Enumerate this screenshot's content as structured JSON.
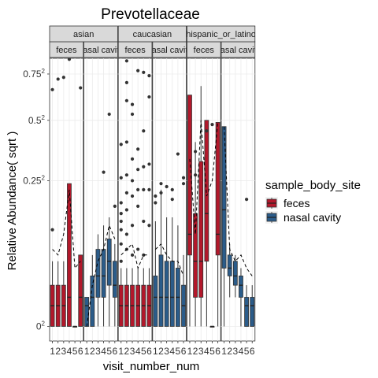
{
  "chart_data": {
    "type": "boxplot",
    "title": "Prevotellaceae",
    "xlabel": "visit_number_num",
    "ylabel": "Relative Abundance( sqrt )",
    "x_categories": [
      "1",
      "2",
      "3",
      "4",
      "5",
      "6"
    ],
    "y_scale": "sqrt",
    "y_ticks": [
      {
        "value": 0,
        "base": "0",
        "exp": "2"
      },
      {
        "value": 0.25,
        "base": "0.25",
        "exp": "2"
      },
      {
        "value": 0.5,
        "base": "0.5",
        "exp": "2"
      },
      {
        "value": 0.75,
        "base": "0.75",
        "exp": "2"
      }
    ],
    "y_range_sqrt": [
      -0.05,
      0.92
    ],
    "grid": true,
    "legend": {
      "title": "sample_body_site",
      "placement": "right",
      "entries": [
        {
          "label": "feces",
          "color": "#B2182B"
        },
        {
          "label": "nasal cavity",
          "color": "#2B5C8A"
        }
      ]
    },
    "facet_rows": [
      "asian",
      "caucasian",
      "hispanic_or_latino"
    ],
    "facets": [
      {
        "ethnicity": "asian",
        "site": "feces",
        "color": "#B2182B",
        "boxes": [
          {
            "x": 1,
            "q1": 0.0,
            "med": 0.005,
            "q3": 0.02,
            "lo": 0.0,
            "hi": 0.05
          },
          {
            "x": 2,
            "q1": 0.0,
            "med": 0.005,
            "q3": 0.02,
            "lo": 0.0,
            "hi": 0.05
          },
          {
            "x": 3,
            "q1": 0.0,
            "med": 0.005,
            "q3": 0.02,
            "lo": 0.0,
            "hi": 0.05
          },
          {
            "x": 4,
            "q1": 0.0,
            "med": 0.01,
            "q3": 0.24,
            "lo": 0.0,
            "hi": 0.24
          },
          {
            "x": 5,
            "q1": 0.0,
            "med": 0.0,
            "q3": 0.0,
            "lo": 0.0,
            "hi": 0.0
          },
          {
            "x": 6,
            "q1": 0.0,
            "med": 0.01,
            "q3": 0.06,
            "lo": 0.0,
            "hi": 0.06
          }
        ],
        "outliers": [
          {
            "x": 1,
            "y": 0.66
          },
          {
            "x": 1,
            "y": 0.11
          },
          {
            "x": 2,
            "y": 0.72
          },
          {
            "x": 3,
            "y": 0.73
          },
          {
            "x": 4,
            "y": 0.84
          },
          {
            "x": 4,
            "y": 0.88
          },
          {
            "x": 6,
            "y": 0.67
          }
        ],
        "mean_line": [
          0.07,
          0.06,
          0.1,
          0.22,
          0.04,
          0.05
        ]
      },
      {
        "ethnicity": "asian",
        "site": "nasal cavity",
        "color": "#2B5C8A",
        "boxes": [
          {
            "x": 1,
            "q1": 0.0,
            "med": 0.005,
            "q3": 0.01,
            "lo": 0.0,
            "hi": 0.01
          },
          {
            "x": 2,
            "q1": 0.0,
            "med": 0.01,
            "q3": 0.03,
            "lo": 0.0,
            "hi": 0.06
          },
          {
            "x": 3,
            "q1": 0.01,
            "med": 0.03,
            "q3": 0.07,
            "lo": 0.0,
            "hi": 0.1
          },
          {
            "x": 4,
            "q1": 0.01,
            "med": 0.03,
            "q3": 0.07,
            "lo": 0.0,
            "hi": 0.12
          },
          {
            "x": 5,
            "q1": 0.02,
            "med": 0.05,
            "q3": 0.09,
            "lo": 0.0,
            "hi": 0.14
          },
          {
            "x": 6,
            "q1": 0.01,
            "med": 0.02,
            "q3": 0.05,
            "lo": 0.0,
            "hi": 0.08
          }
        ],
        "outliers": [
          {
            "x": 4,
            "y": 0.28
          },
          {
            "x": 5,
            "y": 0.53
          },
          {
            "x": 6,
            "y": 0.17
          }
        ],
        "mean_line": [
          0.0,
          0.02,
          0.05,
          0.07,
          0.12,
          0.09
        ]
      },
      {
        "ethnicity": "caucasian",
        "site": "feces",
        "color": "#B2182B",
        "boxes": [
          {
            "x": 1,
            "q1": 0.0,
            "med": 0.005,
            "q3": 0.02,
            "lo": 0.0,
            "hi": 0.04
          },
          {
            "x": 2,
            "q1": 0.0,
            "med": 0.005,
            "q3": 0.02,
            "lo": 0.0,
            "hi": 0.04
          },
          {
            "x": 3,
            "q1": 0.0,
            "med": 0.005,
            "q3": 0.02,
            "lo": 0.0,
            "hi": 0.04
          },
          {
            "x": 4,
            "q1": 0.0,
            "med": 0.005,
            "q3": 0.02,
            "lo": 0.0,
            "hi": 0.04
          },
          {
            "x": 5,
            "q1": 0.0,
            "med": 0.005,
            "q3": 0.02,
            "lo": 0.0,
            "hi": 0.04
          },
          {
            "x": 6,
            "q1": 0.0,
            "med": 0.005,
            "q3": 0.02,
            "lo": 0.0,
            "hi": 0.04
          }
        ],
        "outliers": [
          {
            "x": 1,
            "y": 0.39
          },
          {
            "x": 1,
            "y": 0.26
          },
          {
            "x": 1,
            "y": 0.18
          },
          {
            "x": 1,
            "y": 0.15
          },
          {
            "x": 1,
            "y": 0.13
          },
          {
            "x": 1,
            "y": 0.11
          },
          {
            "x": 1,
            "y": 0.08
          },
          {
            "x": 1,
            "y": 0.05
          },
          {
            "x": 2,
            "y": 0.83
          },
          {
            "x": 2,
            "y": 0.7
          },
          {
            "x": 2,
            "y": 0.6
          },
          {
            "x": 2,
            "y": 0.4
          },
          {
            "x": 2,
            "y": 0.27
          },
          {
            "x": 2,
            "y": 0.21
          },
          {
            "x": 2,
            "y": 0.16
          },
          {
            "x": 2,
            "y": 0.1
          },
          {
            "x": 2,
            "y": 0.07
          },
          {
            "x": 3,
            "y": 0.58
          },
          {
            "x": 3,
            "y": 0.53
          },
          {
            "x": 3,
            "y": 0.33
          },
          {
            "x": 3,
            "y": 0.25
          },
          {
            "x": 3,
            "y": 0.2
          },
          {
            "x": 3,
            "y": 0.12
          },
          {
            "x": 3,
            "y": 0.06
          },
          {
            "x": 4,
            "y": 0.77
          },
          {
            "x": 4,
            "y": 0.37
          },
          {
            "x": 4,
            "y": 0.29
          },
          {
            "x": 4,
            "y": 0.22
          },
          {
            "x": 4,
            "y": 0.17
          },
          {
            "x": 4,
            "y": 0.07
          },
          {
            "x": 5,
            "y": 0.76
          },
          {
            "x": 5,
            "y": 0.45
          },
          {
            "x": 5,
            "y": 0.3
          },
          {
            "x": 5,
            "y": 0.22
          },
          {
            "x": 5,
            "y": 0.13
          },
          {
            "x": 5,
            "y": 0.06
          },
          {
            "x": 6,
            "y": 0.74
          },
          {
            "x": 6,
            "y": 0.62
          },
          {
            "x": 6,
            "y": 0.31
          },
          {
            "x": 6,
            "y": 0.22
          },
          {
            "x": 6,
            "y": 0.12
          }
        ],
        "mean_line": [
          0.06,
          0.07,
          0.08,
          0.04,
          0.06,
          0.06
        ]
      },
      {
        "ethnicity": "caucasian",
        "site": "nasal cavity",
        "color": "#2B5C8A",
        "boxes": [
          {
            "x": 1,
            "q1": 0.0,
            "med": 0.01,
            "q3": 0.03,
            "lo": 0.0,
            "hi": 0.13
          },
          {
            "x": 2,
            "q1": 0.0,
            "med": 0.01,
            "q3": 0.06,
            "lo": 0.0,
            "hi": 0.22
          },
          {
            "x": 3,
            "q1": 0.0,
            "med": 0.01,
            "q3": 0.05,
            "lo": 0.0,
            "hi": 0.14
          },
          {
            "x": 4,
            "q1": 0.0,
            "med": 0.01,
            "q3": 0.05,
            "lo": 0.0,
            "hi": 0.14
          },
          {
            "x": 5,
            "q1": 0.0,
            "med": 0.01,
            "q3": 0.04,
            "lo": 0.0,
            "hi": 0.12
          },
          {
            "x": 6,
            "q1": 0.0,
            "med": 0.005,
            "q3": 0.02,
            "lo": 0.0,
            "hi": 0.06
          }
        ],
        "outliers": [
          {
            "x": 1,
            "y": 0.2
          },
          {
            "x": 1,
            "y": 0.18
          },
          {
            "x": 2,
            "y": 0.24
          },
          {
            "x": 2,
            "y": 0.21
          },
          {
            "x": 3,
            "y": 0.23
          },
          {
            "x": 4,
            "y": 0.22
          },
          {
            "x": 4,
            "y": 0.19
          },
          {
            "x": 5,
            "y": 0.35
          },
          {
            "x": 6,
            "y": 0.26
          },
          {
            "x": 6,
            "y": 0.24
          }
        ],
        "mean_line": [
          0.07,
          0.08,
          0.06,
          0.05,
          0.05,
          0.03
        ]
      },
      {
        "ethnicity": "hispanic_or_latino",
        "site": "feces",
        "color": "#B2182B",
        "boxes": [
          {
            "x": 1,
            "q1": 0.06,
            "med": 0.1,
            "q3": 0.63,
            "lo": 0.0,
            "hi": 0.63
          },
          {
            "x": 2,
            "q1": 0.01,
            "med": 0.05,
            "q3": 0.15,
            "lo": 0.0,
            "hi": 0.4
          },
          {
            "x": 3,
            "q1": 0.01,
            "med": 0.05,
            "q3": 0.32,
            "lo": 0.0,
            "hi": 0.68
          },
          {
            "x": 4,
            "q1": 0.05,
            "med": 0.15,
            "q3": 0.5,
            "lo": 0.0,
            "hi": 0.5
          },
          {
            "x": 5,
            "q1": 0.0,
            "med": 0.0,
            "q3": 0.0,
            "lo": 0.0,
            "hi": 0.0
          },
          {
            "x": 6,
            "q1": 0.06,
            "med": 0.1,
            "q3": 0.49,
            "lo": 0.0,
            "hi": 0.49
          }
        ],
        "outliers": [
          {
            "x": 2,
            "y": 0.36
          },
          {
            "x": 2,
            "y": 0.27
          },
          {
            "x": 4,
            "y": 0.45
          },
          {
            "x": 5,
            "y": 0.48
          }
        ],
        "mean_line": [
          0.33,
          0.1,
          0.5,
          0.2,
          0.25,
          0.49
        ]
      },
      {
        "ethnicity": "hispanic_or_latino",
        "site": "nasal cavity",
        "color": "#2B5C8A",
        "boxes": [
          {
            "x": 1,
            "q1": 0.04,
            "med": 0.16,
            "q3": 0.47,
            "lo": 0.0,
            "hi": 0.47
          },
          {
            "x": 2,
            "q1": 0.03,
            "med": 0.04,
            "q3": 0.06,
            "lo": 0.01,
            "hi": 0.08
          },
          {
            "x": 3,
            "q1": 0.02,
            "med": 0.03,
            "q3": 0.05,
            "lo": 0.01,
            "hi": 0.06
          },
          {
            "x": 4,
            "q1": 0.01,
            "med": 0.02,
            "q3": 0.03,
            "lo": 0.0,
            "hi": 0.04
          },
          {
            "x": 5,
            "q1": 0.0,
            "med": 0.005,
            "q3": 0.01,
            "lo": 0.0,
            "hi": 0.02
          },
          {
            "x": 6,
            "q1": 0.0,
            "med": 0.005,
            "q3": 0.01,
            "lo": 0.0,
            "hi": 0.02
          }
        ],
        "outliers": [
          {
            "x": 5,
            "y": 0.19
          }
        ],
        "mean_line": [
          0.47,
          0.07,
          0.05,
          0.06,
          0.04,
          0.03
        ]
      }
    ]
  }
}
